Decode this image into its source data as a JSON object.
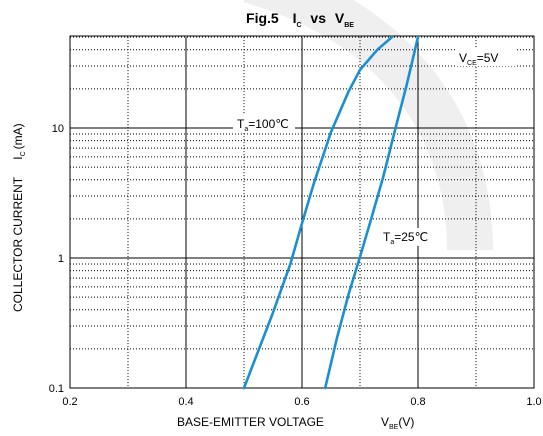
{
  "chart_data": {
    "type": "line",
    "title": {
      "prefix": "Fig.5",
      "y_sym": "I",
      "y_sub": "C",
      "vs": "vs",
      "x_sym": "V",
      "x_sub": "BE"
    },
    "xlabel": {
      "text": "BASE-EMITTER VOLTAGE",
      "sym": "V",
      "sub": "BE",
      "unit": "(V)"
    },
    "ylabel": {
      "text": "COLLECTOR CURRENT",
      "sym": "I",
      "sub": "C",
      "unit": "(mA)"
    },
    "xlim": [
      0.2,
      1.0
    ],
    "ylim": [
      0.1,
      50
    ],
    "y_scale": "log",
    "grid": true,
    "x_ticks": [
      "0.2",
      "0.4",
      "0.6",
      "0.8",
      "1.0"
    ],
    "y_ticks": [
      "0.1",
      "1",
      "10"
    ],
    "condition": {
      "sym": "V",
      "sub": "CE",
      "value": "=5V"
    },
    "series": [
      {
        "name": {
          "sym": "T",
          "sub": "a",
          "value": "=100℃"
        },
        "color": "#1a8fd1",
        "x": [
          0.5,
          0.55,
          0.58,
          0.6,
          0.62,
          0.65,
          0.68,
          0.7,
          0.73,
          0.755
        ],
        "y": [
          0.1,
          0.38,
          0.9,
          1.85,
          3.7,
          9.3,
          19,
          28,
          40,
          50
        ]
      },
      {
        "name": {
          "sym": "T",
          "sub": "a",
          "value": "=25℃"
        },
        "color": "#1a8fd1",
        "x": [
          0.64,
          0.66,
          0.68,
          0.7,
          0.72,
          0.74,
          0.76,
          0.78,
          0.8
        ],
        "y": [
          0.1,
          0.24,
          0.52,
          1.02,
          2.05,
          4.2,
          9.5,
          21,
          50
        ]
      }
    ]
  }
}
